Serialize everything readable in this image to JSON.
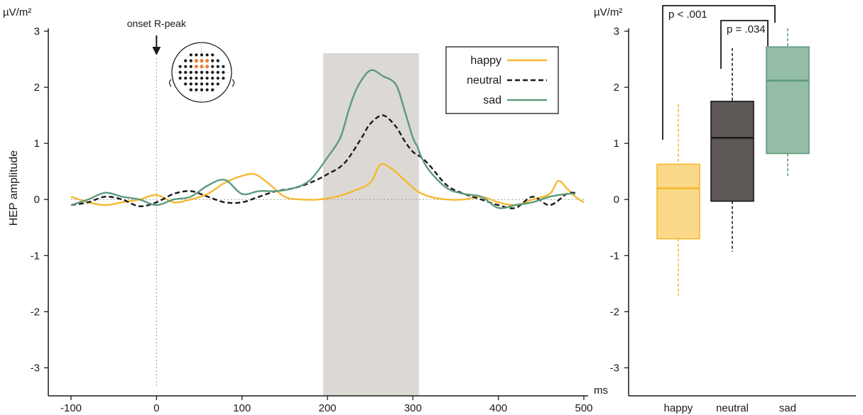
{
  "chart_data": [
    {
      "type": "line",
      "unit_label": "µV/m²",
      "ylabel": "HEP amplitude",
      "xlabel": "ms",
      "xlim": [
        -100,
        500
      ],
      "ylim": [
        -3.5,
        3
      ],
      "x_ticks": [
        -100,
        0,
        100,
        200,
        300,
        400,
        500
      ],
      "y_ticks": [
        3,
        2,
        1,
        0,
        -1,
        -2,
        -3
      ],
      "annotation": "onset R-peak",
      "annotation_x": 0,
      "shaded_window": [
        195,
        307
      ],
      "shade_color": "#dcd8d4",
      "legend_position": "top-right",
      "inset": "electrode scalp map",
      "series": [
        {
          "name": "happy",
          "color": "#f5b92e",
          "dash": "solid",
          "x": [
            -100,
            -80,
            -60,
            -40,
            -20,
            0,
            20,
            40,
            60,
            80,
            100,
            115,
            130,
            150,
            170,
            190,
            210,
            230,
            250,
            262,
            275,
            290,
            305,
            320,
            340,
            360,
            380,
            400,
            420,
            440,
            460,
            470,
            480,
            490,
            500
          ],
          "y": [
            0.05,
            -0.05,
            -0.1,
            -0.05,
            0.0,
            0.08,
            -0.05,
            0.0,
            0.1,
            0.3,
            0.42,
            0.45,
            0.3,
            0.05,
            0.0,
            0.0,
            0.05,
            0.15,
            0.3,
            0.62,
            0.55,
            0.35,
            0.15,
            0.05,
            0.0,
            0.0,
            0.05,
            -0.05,
            -0.1,
            0.0,
            0.1,
            0.33,
            0.2,
            0.05,
            -0.05
          ]
        },
        {
          "name": "neutral",
          "color": "#1a1a1a",
          "dash": "dashed",
          "x": [
            -100,
            -80,
            -60,
            -40,
            -20,
            0,
            20,
            40,
            60,
            80,
            100,
            120,
            140,
            160,
            180,
            200,
            220,
            240,
            250,
            265,
            280,
            290,
            300,
            310,
            320,
            340,
            360,
            380,
            400,
            420,
            440,
            460,
            480,
            490
          ],
          "y": [
            -0.1,
            -0.05,
            0.05,
            0.0,
            -0.12,
            -0.05,
            0.1,
            0.15,
            0.05,
            -0.05,
            -0.05,
            0.05,
            0.15,
            0.2,
            0.3,
            0.45,
            0.65,
            1.1,
            1.35,
            1.5,
            1.3,
            1.05,
            0.85,
            0.75,
            0.6,
            0.25,
            0.1,
            0.0,
            -0.1,
            -0.15,
            0.05,
            -0.1,
            0.1,
            0.12
          ]
        },
        {
          "name": "sad",
          "color": "#5e9a7c",
          "dash": "solid",
          "x": [
            -100,
            -80,
            -60,
            -40,
            -20,
            0,
            20,
            40,
            60,
            80,
            100,
            120,
            140,
            160,
            180,
            200,
            215,
            225,
            235,
            250,
            265,
            280,
            290,
            300,
            305,
            310,
            320,
            340,
            360,
            380,
            400,
            420,
            440,
            460,
            480,
            490
          ],
          "y": [
            -0.1,
            0.0,
            0.12,
            0.05,
            0.0,
            -0.1,
            0.0,
            0.05,
            0.25,
            0.35,
            0.1,
            0.15,
            0.15,
            0.2,
            0.35,
            0.75,
            1.1,
            1.6,
            2.0,
            2.3,
            2.2,
            2.05,
            1.6,
            1.1,
            0.95,
            0.75,
            0.5,
            0.2,
            0.1,
            0.05,
            -0.15,
            -0.1,
            -0.05,
            0.05,
            0.1,
            0.1
          ]
        }
      ]
    },
    {
      "type": "box",
      "unit_label": "µV/m²",
      "ylim": [
        -3.5,
        3
      ],
      "y_ticks": [
        3,
        2,
        1,
        0,
        -1,
        -2,
        -3
      ],
      "categories": [
        "happy",
        "neutral",
        "sad"
      ],
      "boxes": [
        {
          "name": "happy",
          "fill": "#fbd98a",
          "edge": "#f5b92e",
          "whisker_low": -1.72,
          "q1": -0.7,
          "median": 0.2,
          "q3": 0.63,
          "whisker_high": 1.7
        },
        {
          "name": "neutral",
          "fill": "#5d5856",
          "edge": "#1a1a1a",
          "whisker_low": -0.93,
          "q1": -0.03,
          "median": 1.1,
          "q3": 1.75,
          "whisker_high": 2.7
        },
        {
          "name": "sad",
          "fill": "#94bda7",
          "edge": "#5e9a7c",
          "whisker_low": 0.42,
          "q1": 0.82,
          "median": 2.12,
          "q3": 2.72,
          "whisker_high": 3.05
        }
      ],
      "significance": [
        {
          "from": "happy",
          "to": "sad",
          "label": "p < .001"
        },
        {
          "from": "neutral",
          "to": "sad",
          "label": "p = .034"
        }
      ]
    }
  ]
}
